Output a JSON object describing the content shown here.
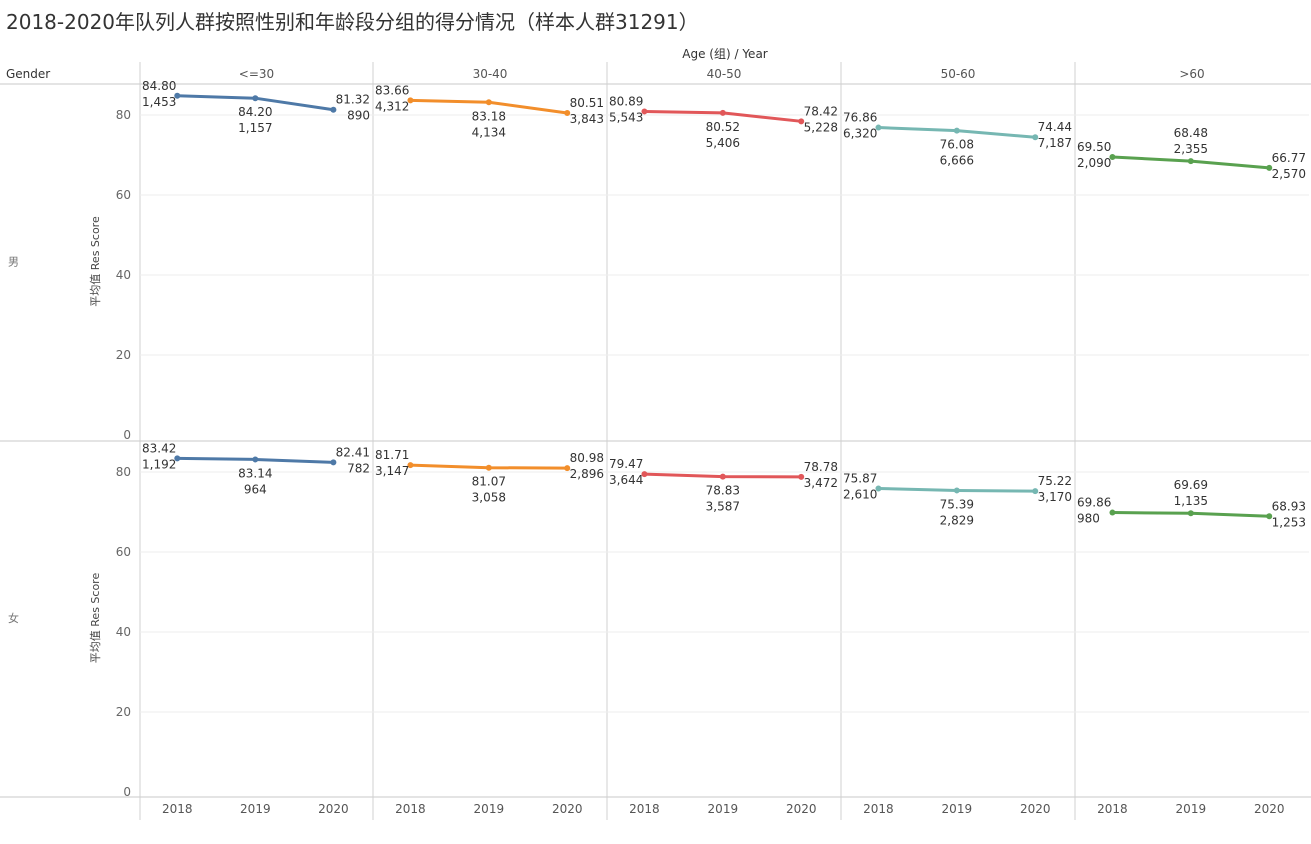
{
  "title": "2018-2020年队列人群按照性别和年龄段分组的得分情况（样本人群31291）",
  "header": {
    "columns_title": "Age (组) / Year",
    "rows_title": "Gender"
  },
  "chart_data": {
    "type": "line",
    "title": "2018-2020年队列人群按照性别和年龄段分组的得分情况（样本人群31291）",
    "ylabel": "平均值 Res Score",
    "ylim": [
      0,
      88
    ],
    "yticks": [
      0,
      20,
      40,
      60,
      80
    ],
    "grid": true,
    "x": [
      "2018",
      "2019",
      "2020"
    ],
    "age_groups": [
      {
        "name": "<=30",
        "color": "#4e79a7"
      },
      {
        "name": "30-40",
        "color": "#f28e2b"
      },
      {
        "name": "40-50",
        "color": "#e15759"
      },
      {
        "name": "50-60",
        "color": "#76b7b2"
      },
      {
        "name": ">60",
        "color": "#59a14f"
      }
    ],
    "genders": [
      {
        "name": "男",
        "series": [
          {
            "age": "<=30",
            "values": [
              84.8,
              84.2,
              81.32
            ],
            "labels": [
              "84.80",
              "84.20",
              "81.32"
            ],
            "counts": [
              "1,453",
              "1,157",
              "890"
            ]
          },
          {
            "age": "30-40",
            "values": [
              83.66,
              83.18,
              80.51
            ],
            "labels": [
              "83.66",
              "83.18",
              "80.51"
            ],
            "counts": [
              "4,312",
              "4,134",
              "3,843"
            ]
          },
          {
            "age": "40-50",
            "values": [
              80.89,
              80.52,
              78.42
            ],
            "labels": [
              "80.89",
              "80.52",
              "78.42"
            ],
            "counts": [
              "5,543",
              "5,406",
              "5,228"
            ]
          },
          {
            "age": "50-60",
            "values": [
              76.86,
              76.08,
              74.44
            ],
            "labels": [
              "76.86",
              "76.08",
              "74.44"
            ],
            "counts": [
              "6,320",
              "6,666",
              "7,187"
            ]
          },
          {
            "age": ">60",
            "values": [
              69.5,
              68.48,
              66.77
            ],
            "labels": [
              "69.50",
              "68.48",
              "66.77"
            ],
            "counts": [
              "2,090",
              "2,355",
              "2,570"
            ]
          }
        ]
      },
      {
        "name": "女",
        "series": [
          {
            "age": "<=30",
            "values": [
              83.42,
              83.14,
              82.41
            ],
            "labels": [
              "83.42",
              "83.14",
              "82.41"
            ],
            "counts": [
              "1,192",
              "964",
              "782"
            ]
          },
          {
            "age": "30-40",
            "values": [
              81.71,
              81.07,
              80.98
            ],
            "labels": [
              "81.71",
              "81.07",
              "80.98"
            ],
            "counts": [
              "3,147",
              "3,058",
              "2,896"
            ]
          },
          {
            "age": "40-50",
            "values": [
              79.47,
              78.83,
              78.78
            ],
            "labels": [
              "79.47",
              "78.83",
              "78.78"
            ],
            "counts": [
              "3,644",
              "3,587",
              "3,472"
            ]
          },
          {
            "age": "50-60",
            "values": [
              75.87,
              75.39,
              75.22
            ],
            "labels": [
              "75.87",
              "75.39",
              "75.22"
            ],
            "counts": [
              "2,610",
              "2,829",
              "3,170"
            ]
          },
          {
            "age": ">60",
            "values": [
              69.86,
              69.69,
              68.93
            ],
            "labels": [
              "69.86",
              "69.69",
              "68.93"
            ],
            "counts": [
              "980",
              "1,135",
              "1,253"
            ]
          }
        ]
      }
    ]
  }
}
